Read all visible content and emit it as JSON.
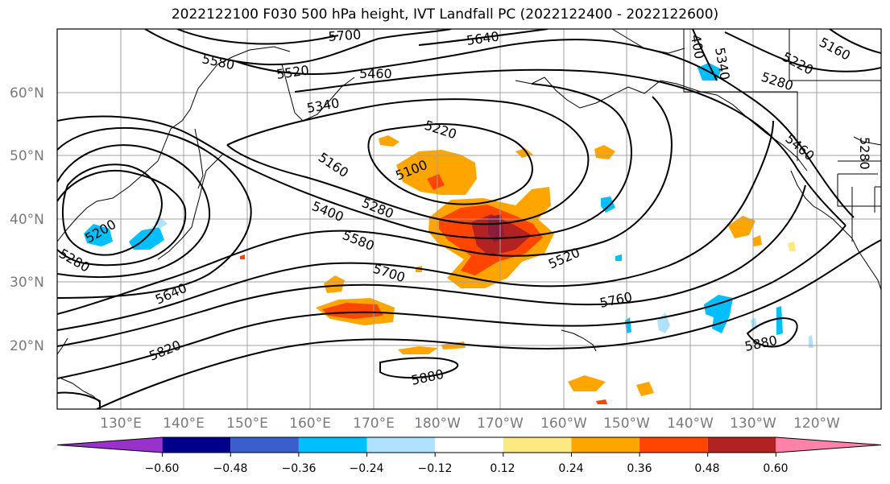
{
  "title": "2022122100 F030 500 hPa height, IVT Landfall PC (2022122400 - 2022122600)",
  "lat_labels": [
    "60°N",
    "50°N",
    "40°N",
    "30°N",
    "20°N"
  ],
  "lon_labels": [
    "130°E",
    "140°E",
    "150°E",
    "160°E",
    "170°E",
    "180°W",
    "170°W",
    "160°W",
    "150°W",
    "140°W",
    "130°W",
    "120°W"
  ],
  "contour_labels": [
    "5700",
    "5640",
    "5580",
    "5520",
    "5460",
    "5340",
    "5220",
    "5160",
    "5100",
    "5400",
    "5280",
    "5580",
    "5700",
    "5520",
    "5760",
    "5640",
    "5820",
    "5880",
    "5880",
    "5160",
    "5220",
    "5280",
    "5460",
    "5280",
    "400",
    "5340",
    "5200",
    "5280"
  ],
  "colorbar": {
    "ticks": [
      "−0.60",
      "−0.48",
      "−0.36",
      "−0.24",
      "−0.12",
      "0.12",
      "0.24",
      "0.36",
      "0.48",
      "0.60"
    ],
    "colors": [
      "#9932cc",
      "#00008b",
      "#3a5fcd",
      "#00bfff",
      "#b0e2ff",
      "#ffffff",
      "#fde982",
      "#ffa500",
      "#ff4500",
      "#b22222",
      "#ff82ab"
    ]
  }
}
